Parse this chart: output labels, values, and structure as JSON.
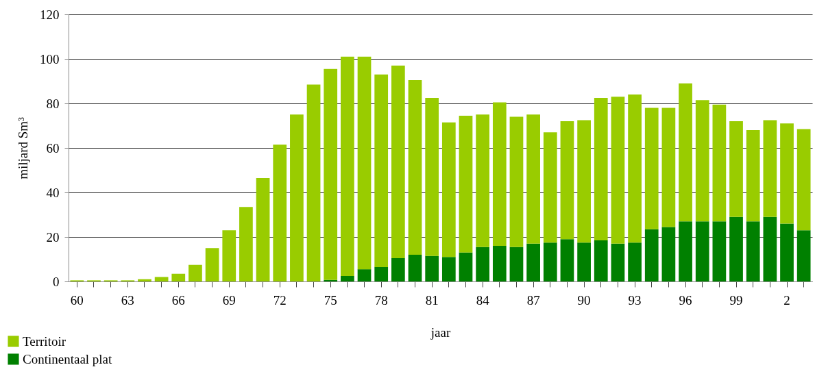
{
  "chart_data": {
    "type": "bar",
    "xlabel": "jaar",
    "ylabel": "miljard Sm³",
    "stacked": true,
    "categories": [
      "60",
      null,
      null,
      "63",
      null,
      null,
      "66",
      null,
      null,
      "69",
      null,
      null,
      "72",
      null,
      null,
      "75",
      null,
      null,
      "78",
      null,
      null,
      "81",
      null,
      null,
      "84",
      null,
      null,
      "87",
      null,
      null,
      "90",
      null,
      null,
      "93",
      null,
      null,
      "96",
      null,
      null,
      "99",
      null,
      null,
      "2",
      null
    ],
    "series": [
      {
        "name": "Continentaal plat",
        "color": "#008000",
        "values": [
          null,
          null,
          null,
          null,
          null,
          null,
          null,
          null,
          null,
          null,
          null,
          null,
          null,
          null,
          null,
          0.7,
          2.5,
          5.5,
          6.5,
          10.5,
          12,
          11.5,
          11,
          13,
          15.5,
          16,
          15.5,
          17,
          17.5,
          19,
          17.5,
          18.5,
          17,
          17.5,
          23.5,
          24.5,
          27,
          27,
          27,
          29,
          27,
          29,
          26,
          23
        ]
      },
      {
        "name": "Territoir",
        "color": "#99cc00",
        "values": [
          0.5,
          0.5,
          0.5,
          0.5,
          1,
          2,
          3.5,
          7.5,
          15,
          23,
          33.5,
          46.5,
          61.5,
          75,
          88.5,
          94.8,
          98.5,
          95.5,
          86.5,
          86.5,
          78.5,
          71,
          60.5,
          61.5,
          59.5,
          64.5,
          58.5,
          58,
          49.5,
          53,
          55,
          64,
          66,
          66.5,
          54.5,
          53.5,
          62,
          54.5,
          52.5,
          43,
          41,
          43.5,
          45,
          45.5
        ]
      }
    ],
    "ylim": [
      0,
      120
    ],
    "yticks": [
      0,
      20,
      40,
      60,
      80,
      100,
      120
    ],
    "grid": "y",
    "legend": "bottom left"
  }
}
